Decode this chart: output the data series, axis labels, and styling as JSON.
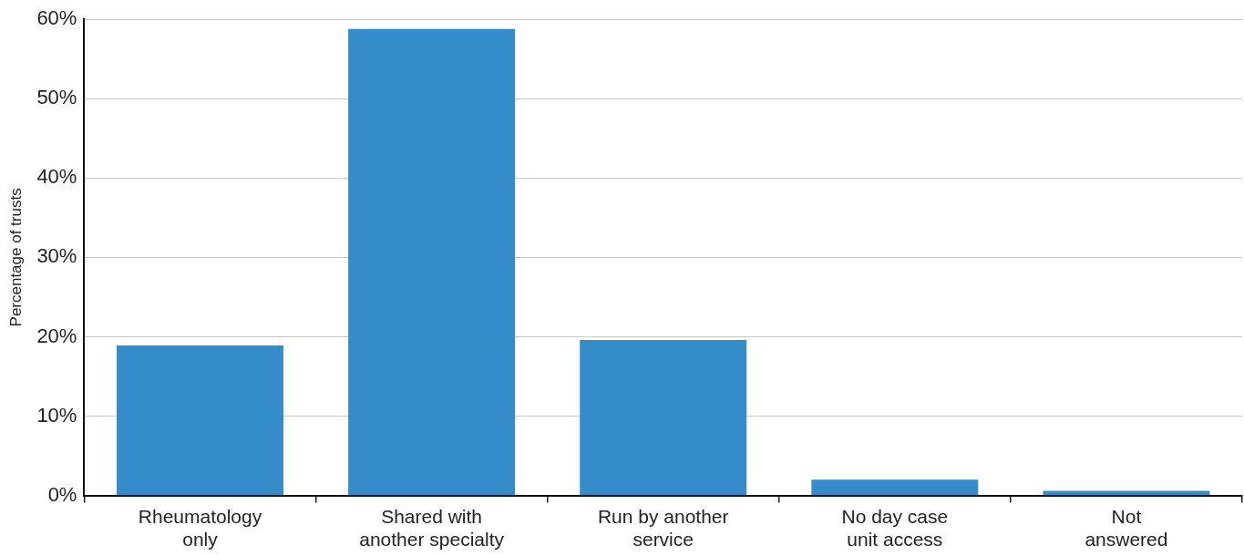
{
  "chart_data": {
    "type": "bar",
    "ylabel": "Percentage of trusts",
    "categories": [
      "Rheumatology only",
      "Shared with another specialty",
      "Run by another service",
      "No day case unit access",
      "Not answered"
    ],
    "values": [
      18.9,
      58.8,
      19.6,
      2.0,
      0.6
    ],
    "color": "#348ccb",
    "ylim": [
      0,
      60
    ],
    "yticks": [
      {
        "value": 0,
        "label": "0%"
      },
      {
        "value": 10,
        "label": "10%"
      },
      {
        "value": 20,
        "label": "20%"
      },
      {
        "value": 30,
        "label": "30%"
      },
      {
        "value": 40,
        "label": "40%"
      },
      {
        "value": 50,
        "label": "50%"
      },
      {
        "value": 60,
        "label": "60%"
      }
    ],
    "grid": "y"
  }
}
